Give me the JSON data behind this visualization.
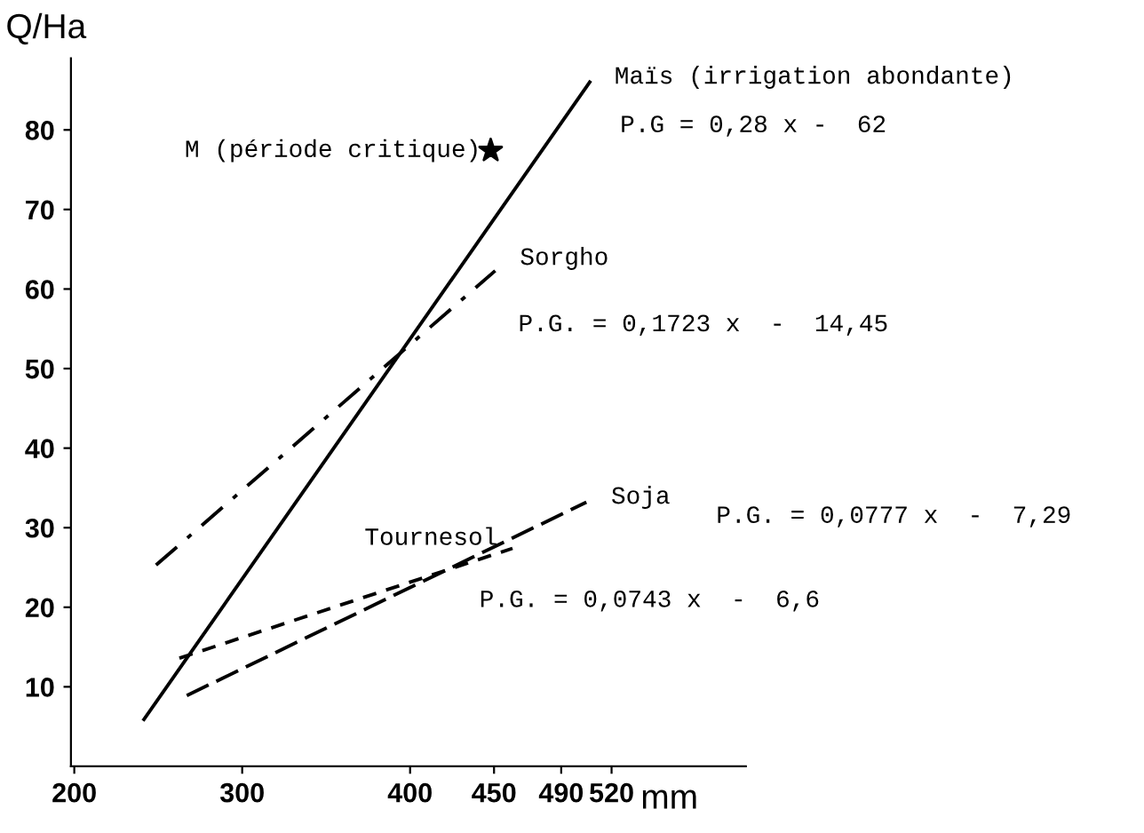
{
  "chart_data": {
    "type": "line",
    "xlabel": "mm",
    "ylabel": "Q/Ha",
    "xlim": [
      198,
      600
    ],
    "ylim": [
      0,
      89
    ],
    "xticks": [
      200,
      300,
      400,
      450,
      490,
      520
    ],
    "yticks": [
      10,
      20,
      30,
      40,
      50,
      60,
      70,
      80
    ],
    "grid": false,
    "legend": false,
    "series": [
      {
        "name": "Maïs (irrigation abondante)",
        "color": "#000000",
        "line_style": "solid",
        "x": [
          241.5,
          507
        ],
        "values": [
          5.9,
          86
        ]
      },
      {
        "name": "Sorgho",
        "color": "#000000",
        "line_style": "dashdot",
        "x": [
          248.7,
          450.7
        ],
        "values": [
          25.3,
          62.3
        ]
      },
      {
        "name": "Tournesol",
        "color": "#000000",
        "line_style": "dotted",
        "x": [
          262.6,
          461
        ],
        "values": [
          13.6,
          27.4
        ]
      },
      {
        "name": "Soja",
        "color": "#000000",
        "line_style": "dashed",
        "x": [
          267,
          505
        ],
        "values": [
          8.9,
          33.2
        ]
      },
      {
        "name": "M (période critique)",
        "type": "scatter",
        "marker": "star",
        "color": "#000000",
        "x": [
          448
        ],
        "values": [
          77.4
        ]
      }
    ],
    "annotations": [
      "P.G = 0,28 x -  62",
      "P.G. = 0,1723 x  -  14,45",
      "P.G. = 0,0777 x  -  7,29",
      "P.G. = 0,0743 x  -  6,6"
    ]
  }
}
